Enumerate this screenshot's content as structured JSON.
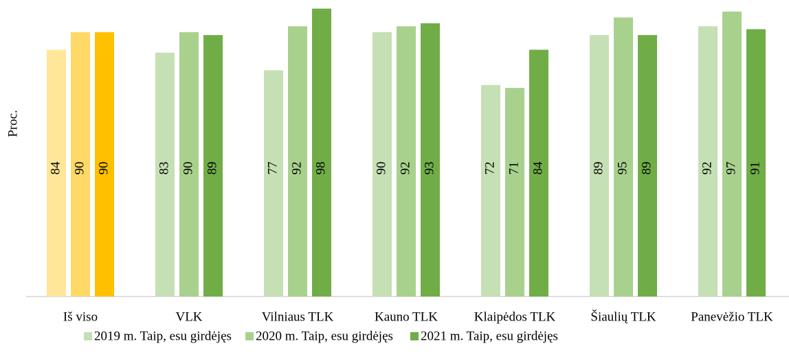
{
  "chart_data": {
    "type": "bar",
    "y_label": "Proc.",
    "categories": [
      "Iš viso",
      "VLK",
      "Vilniaus TLK",
      "Kauno TLK",
      "Klaipėdos TLK",
      "Šiaulių TLK",
      "Panevėžio TLK"
    ],
    "series": [
      {
        "name": "2019 m. Taip, esu girdėjęs",
        "color": "#c5e0b4",
        "colors": [
          "#ffe699",
          "#c5e0b4",
          "#c5e0b4",
          "#c5e0b4",
          "#c5e0b4",
          "#c5e0b4",
          "#c5e0b4"
        ],
        "values": [
          84,
          83,
          77,
          90,
          72,
          89,
          92
        ]
      },
      {
        "name": "2020 m. Taip, esu girdėjęs",
        "color": "#a9d18e",
        "colors": [
          "#ffd966",
          "#a9d18e",
          "#a9d18e",
          "#a9d18e",
          "#a9d18e",
          "#a9d18e",
          "#a9d18e"
        ],
        "values": [
          90,
          90,
          92,
          92,
          71,
          95,
          97
        ]
      },
      {
        "name": "2021 m. Taip, esu girdėjęs",
        "color": "#70ad47",
        "colors": [
          "#ffc000",
          "#70ad47",
          "#70ad47",
          "#70ad47",
          "#70ad47",
          "#70ad47",
          "#70ad47"
        ],
        "values": [
          90,
          89,
          98,
          93,
          84,
          89,
          91
        ]
      }
    ],
    "ylim": [
      0,
      100
    ]
  }
}
